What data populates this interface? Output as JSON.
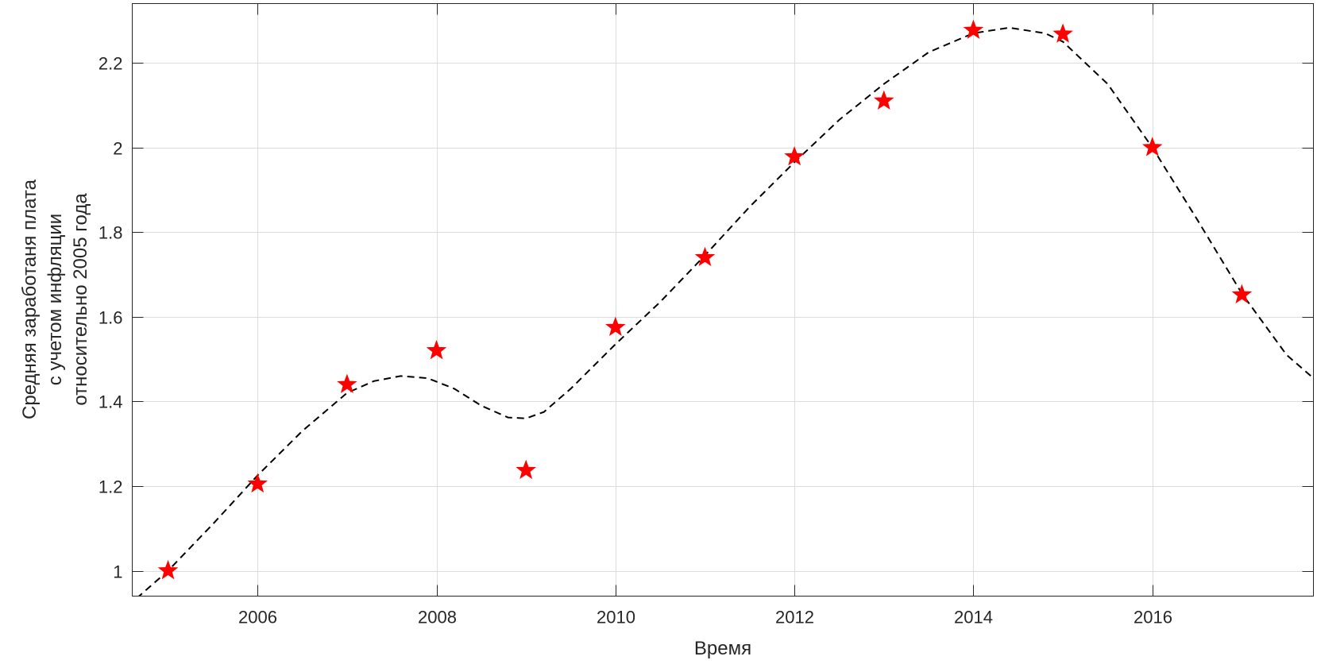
{
  "chart_data": {
    "type": "scatter",
    "xlabel": "Время",
    "ylabel_lines": [
      "Средняя заработаня плата",
      "с учетом инфляции",
      "относительно 2005 года"
    ],
    "xlim": [
      2004.6,
      2017.8
    ],
    "ylim": [
      0.94,
      2.34
    ],
    "x_ticks": [
      2006,
      2008,
      2010,
      2012,
      2014,
      2016
    ],
    "x_tick_labels": [
      "2006",
      "2008",
      "2010",
      "2012",
      "2014",
      "2016"
    ],
    "y_ticks": [
      1,
      1.2,
      1.4,
      1.6,
      1.8,
      2,
      2.2
    ],
    "y_tick_labels": [
      "1",
      "1.2",
      "1.4",
      "1.6",
      "1.8",
      "2",
      "2.2"
    ],
    "grid": true,
    "series": [
      {
        "marker": "star",
        "color": "#ff0000",
        "x": [
          2005,
          2006,
          2007,
          2008,
          2009,
          2010,
          2011,
          2012,
          2013,
          2014,
          2015,
          2016,
          2017
        ],
        "y": [
          1.0,
          1.205,
          1.44,
          1.52,
          1.237,
          1.575,
          1.74,
          1.978,
          2.11,
          2.277,
          2.268,
          2.0,
          1.652
        ]
      },
      {
        "line_style": "dashed",
        "color": "#000000",
        "x": [
          2004.65,
          2005,
          2005.5,
          2006,
          2006.5,
          2007,
          2007.3,
          2007.6,
          2007.9,
          2008.2,
          2008.5,
          2008.8,
          2009,
          2009.2,
          2009.5,
          2010,
          2010.5,
          2011,
          2011.5,
          2012,
          2012.5,
          2013,
          2013.5,
          2014,
          2014.4,
          2014.8,
          2015,
          2015.5,
          2016,
          2016.5,
          2017,
          2017.5,
          2017.8
        ],
        "y": [
          0.935,
          1.0,
          1.11,
          1.225,
          1.33,
          1.42,
          1.448,
          1.46,
          1.455,
          1.43,
          1.39,
          1.362,
          1.36,
          1.375,
          1.43,
          1.535,
          1.635,
          1.745,
          1.86,
          1.965,
          2.065,
          2.15,
          2.225,
          2.27,
          2.283,
          2.27,
          2.25,
          2.15,
          2.0,
          1.83,
          1.655,
          1.51,
          1.455
        ]
      }
    ]
  }
}
